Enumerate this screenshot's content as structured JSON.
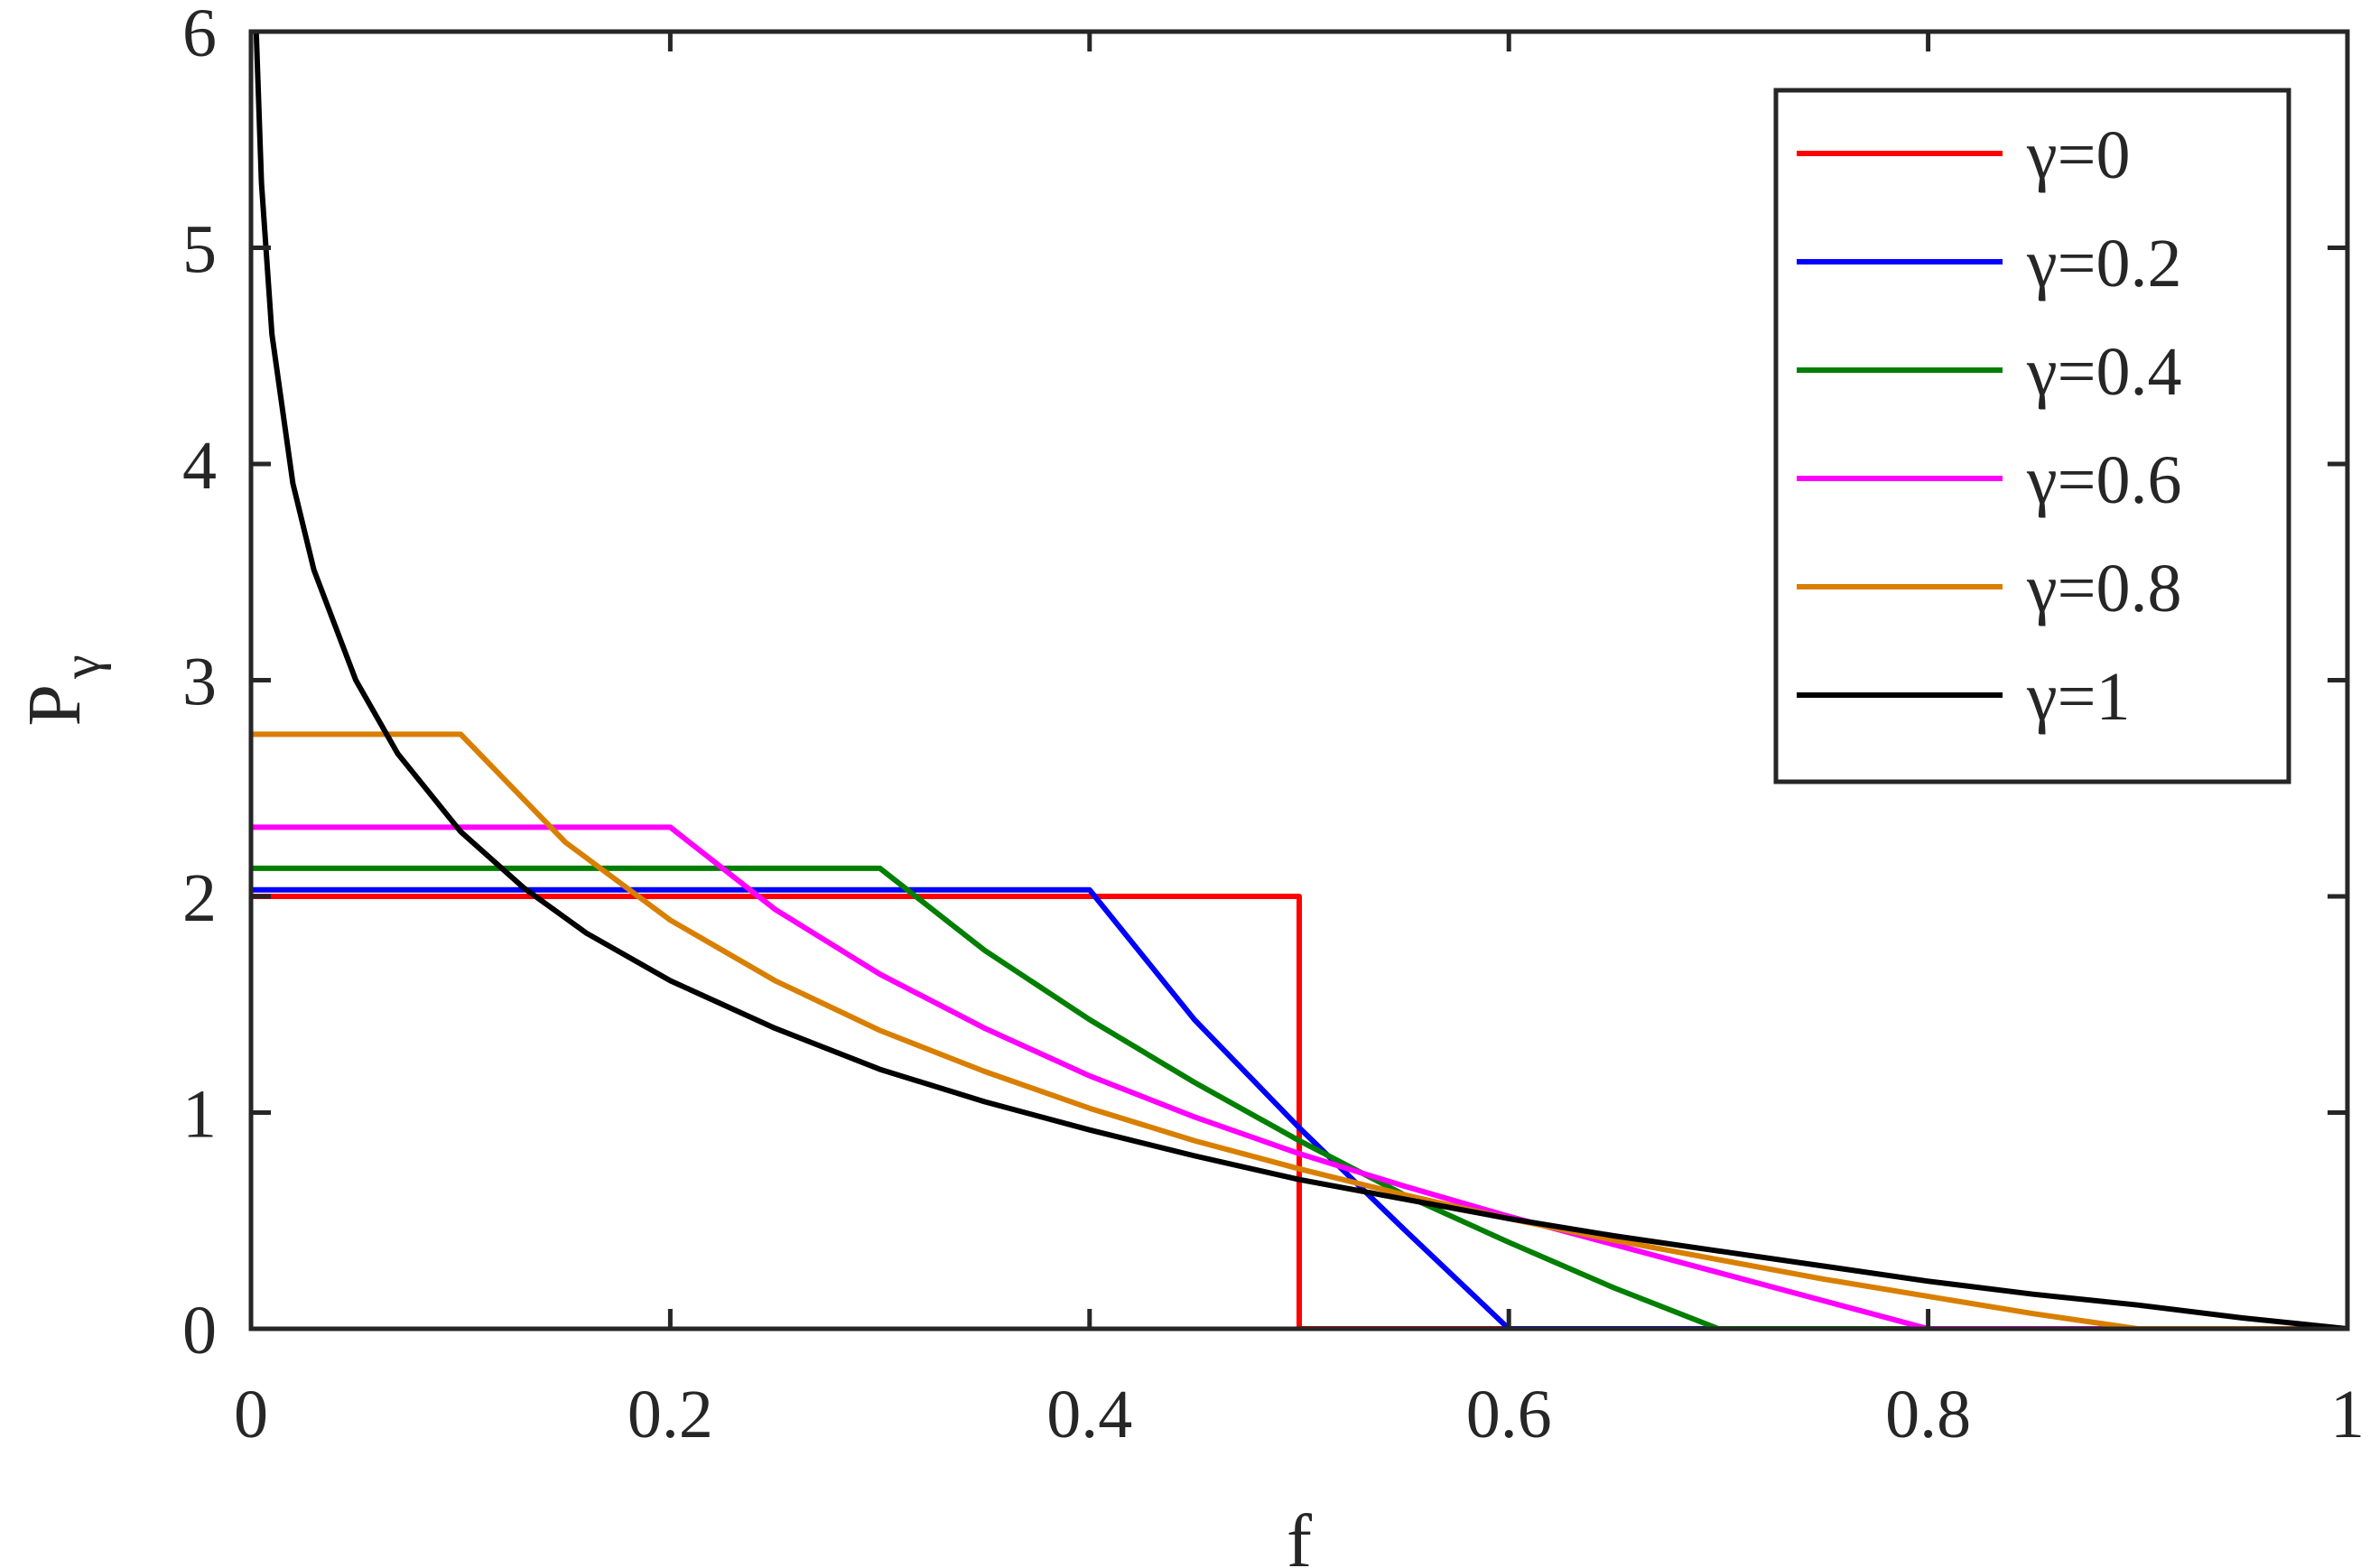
{
  "chart_data": {
    "type": "line",
    "xlabel": "f",
    "ylabel": "P",
    "ylabel_subscript": "γ",
    "xlim": [
      0,
      1
    ],
    "ylim": [
      0,
      6
    ],
    "xticks": [
      0,
      0.2,
      0.4,
      0.6,
      0.8,
      1
    ],
    "xtick_labels": [
      "0",
      "0.2",
      "0.4",
      "0.6",
      "0.8",
      "1"
    ],
    "yticks": [
      0,
      1,
      2,
      3,
      4,
      5,
      6
    ],
    "ytick_labels": [
      "0",
      "1",
      "2",
      "3",
      "4",
      "5",
      "6"
    ],
    "grid": false,
    "legend_position": "top-right",
    "series": [
      {
        "name": "γ=0",
        "color": "#ff0000",
        "gamma": 0,
        "x": [
          0,
          0.5,
          0.5,
          0.6,
          1
        ],
        "y": [
          2,
          2,
          0,
          0,
          0
        ]
      },
      {
        "name": "γ=0.2",
        "color": "#0000ff",
        "gamma": 0.2,
        "x": [
          0,
          0.4,
          0.45,
          0.5,
          0.55,
          0.6,
          0.7,
          1
        ],
        "y": [
          2.03,
          2.03,
          1.43,
          0.93,
          0.46,
          0,
          0,
          0
        ]
      },
      {
        "name": "γ=0.4",
        "color": "#007f00",
        "gamma": 0.4,
        "x": [
          0,
          0.3,
          0.35,
          0.4,
          0.45,
          0.5,
          0.55,
          0.6,
          0.65,
          0.7,
          1
        ],
        "y": [
          2.13,
          2.13,
          1.75,
          1.43,
          1.14,
          0.87,
          0.62,
          0.4,
          0.19,
          0,
          0
        ]
      },
      {
        "name": "γ=0.6",
        "color": "#ff00ff",
        "gamma": 0.6,
        "x": [
          0,
          0.2,
          0.25,
          0.3,
          0.35,
          0.4,
          0.45,
          0.5,
          0.55,
          0.6,
          0.65,
          0.7,
          0.75,
          0.8,
          1
        ],
        "y": [
          2.32,
          2.32,
          1.94,
          1.64,
          1.39,
          1.17,
          0.98,
          0.81,
          0.66,
          0.52,
          0.39,
          0.26,
          0.13,
          0,
          0
        ]
      },
      {
        "name": "γ=0.8",
        "color": "#d97f00",
        "gamma": 0.8,
        "x": [
          0,
          0.1,
          0.15,
          0.2,
          0.25,
          0.3,
          0.35,
          0.4,
          0.45,
          0.5,
          0.55,
          0.6,
          0.65,
          0.7,
          0.75,
          0.8,
          0.85,
          0.9,
          1
        ],
        "y": [
          2.75,
          2.75,
          2.25,
          1.89,
          1.61,
          1.38,
          1.19,
          1.02,
          0.87,
          0.74,
          0.62,
          0.51,
          0.41,
          0.32,
          0.23,
          0.15,
          0.07,
          0,
          0
        ]
      },
      {
        "name": "γ=1",
        "color": "#000000",
        "gamma": 1,
        "x": [
          0.0025,
          0.005,
          0.01,
          0.02,
          0.03,
          0.05,
          0.07,
          0.1,
          0.13,
          0.16,
          0.2,
          0.25,
          0.3,
          0.35,
          0.4,
          0.45,
          0.5,
          0.55,
          0.6,
          0.65,
          0.7,
          0.75,
          0.8,
          0.85,
          0.9,
          0.95,
          1.0
        ],
        "y": [
          6.0,
          5.3,
          4.6,
          3.91,
          3.51,
          3.0,
          2.66,
          2.3,
          2.04,
          1.83,
          1.61,
          1.39,
          1.2,
          1.05,
          0.92,
          0.8,
          0.69,
          0.6,
          0.51,
          0.43,
          0.36,
          0.29,
          0.22,
          0.16,
          0.11,
          0.05,
          0.0
        ]
      }
    ]
  }
}
